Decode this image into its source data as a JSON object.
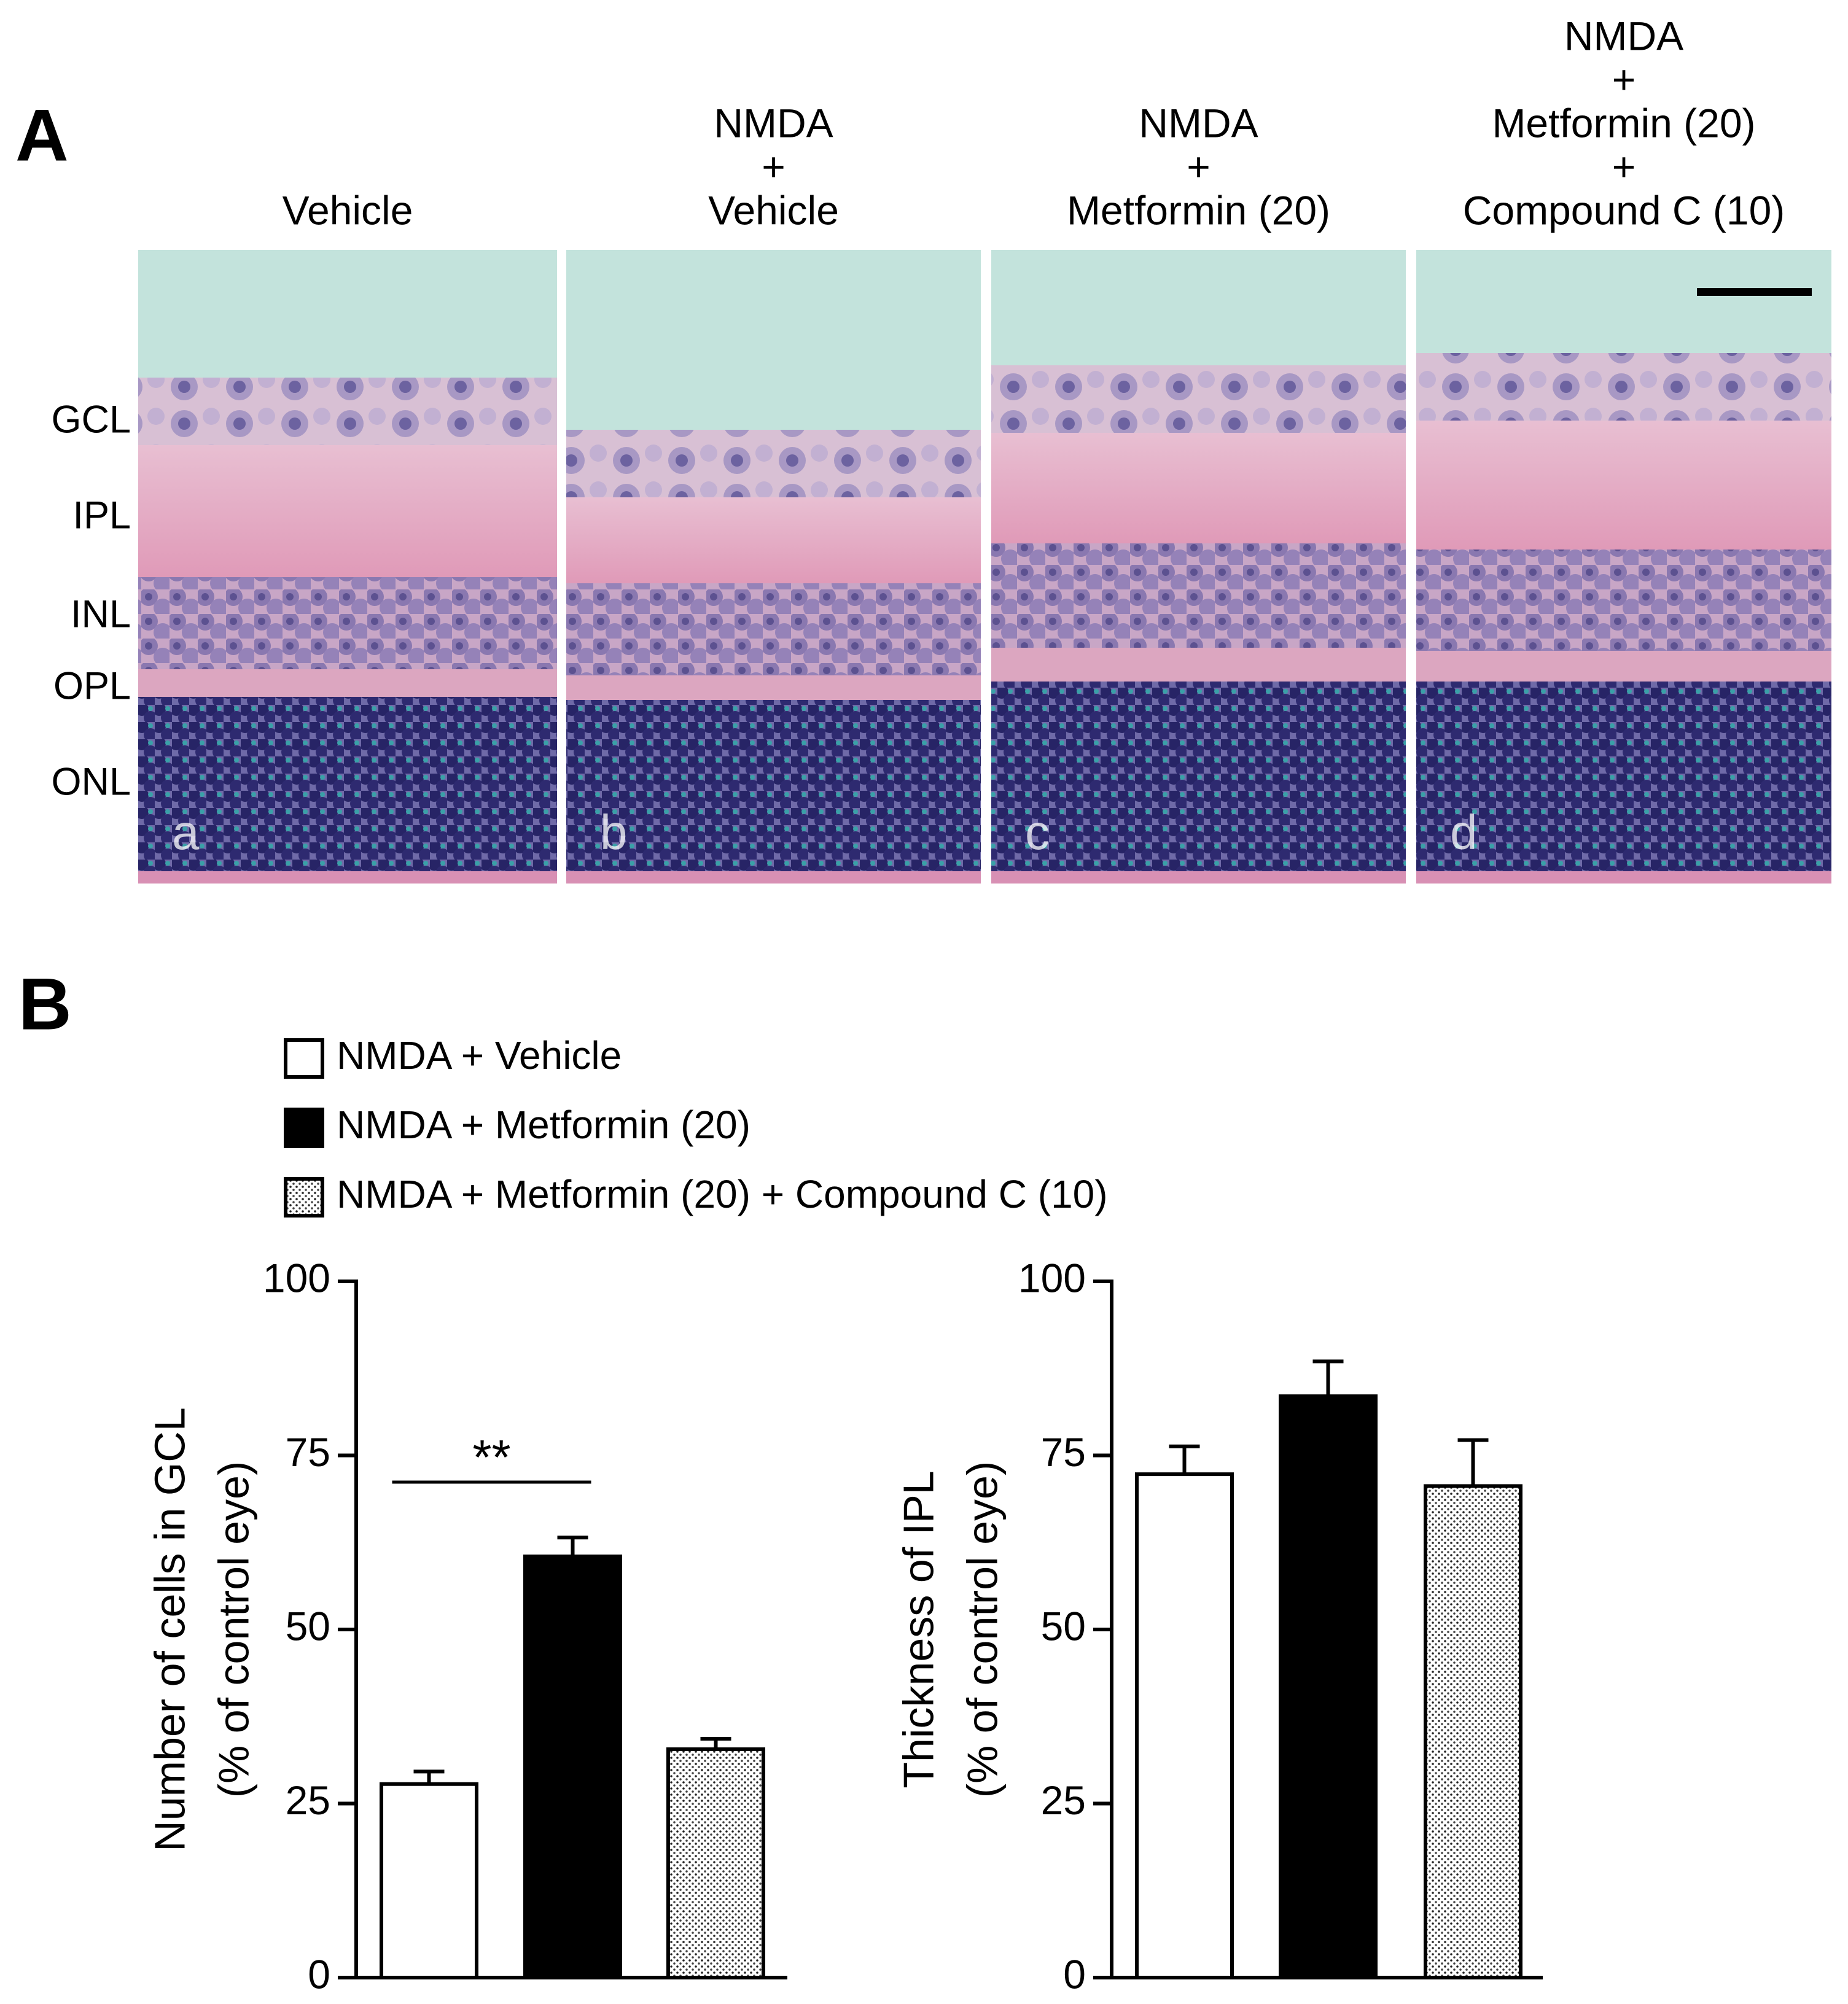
{
  "panel_a": {
    "label": "A",
    "columns": [
      {
        "header": [
          "Vehicle"
        ],
        "letter": "a"
      },
      {
        "header": [
          "NMDA",
          "+",
          "Vehicle"
        ],
        "letter": "b"
      },
      {
        "header": [
          "NMDA",
          "+",
          "Metformin (20)"
        ],
        "letter": "c"
      },
      {
        "header": [
          "NMDA",
          "+",
          "Metformin (20)",
          "+",
          "Compound C (10)"
        ],
        "letter": "d"
      }
    ],
    "layers": [
      "GCL",
      "IPL",
      "INL",
      "OPL",
      "ONL"
    ]
  },
  "panel_b": {
    "label": "B"
  },
  "chart_data": [
    {
      "type": "bar",
      "ylabel": [
        "Number of cells in GCL",
        "(% of control eye)"
      ],
      "ylim": [
        0,
        100
      ],
      "yticks": [
        0,
        25,
        50,
        75,
        100
      ],
      "annotation": "**",
      "series": [
        {
          "name": "NMDA + Vehicle",
          "color": "#ffffff",
          "values": [
            27.8
          ],
          "errors": [
            1.8
          ]
        },
        {
          "name": "NMDA + Metformin (20)",
          "color": "#000000",
          "values": [
            60.5
          ],
          "errors": [
            2.7
          ]
        },
        {
          "name": "NMDA + Metformin (20) + Compound C (10)",
          "color": "#ffffff",
          "pattern": "dots",
          "values": [
            32.8
          ],
          "errors": [
            1.5
          ]
        }
      ]
    },
    {
      "type": "bar",
      "ylabel": [
        "Thickness of IPL",
        "(% of control eye)"
      ],
      "ylim": [
        0,
        100
      ],
      "yticks": [
        0,
        25,
        50,
        75,
        100
      ],
      "series": [
        {
          "color": "#ffffff",
          "values": [
            72.3
          ],
          "errors": [
            4.0
          ]
        },
        {
          "color": "#000000",
          "values": [
            83.5
          ],
          "errors": [
            5.0
          ]
        },
        {
          "color": "#ffffff",
          "pattern": "dots",
          "values": [
            70.6
          ],
          "errors": [
            6.6
          ]
        }
      ]
    }
  ]
}
